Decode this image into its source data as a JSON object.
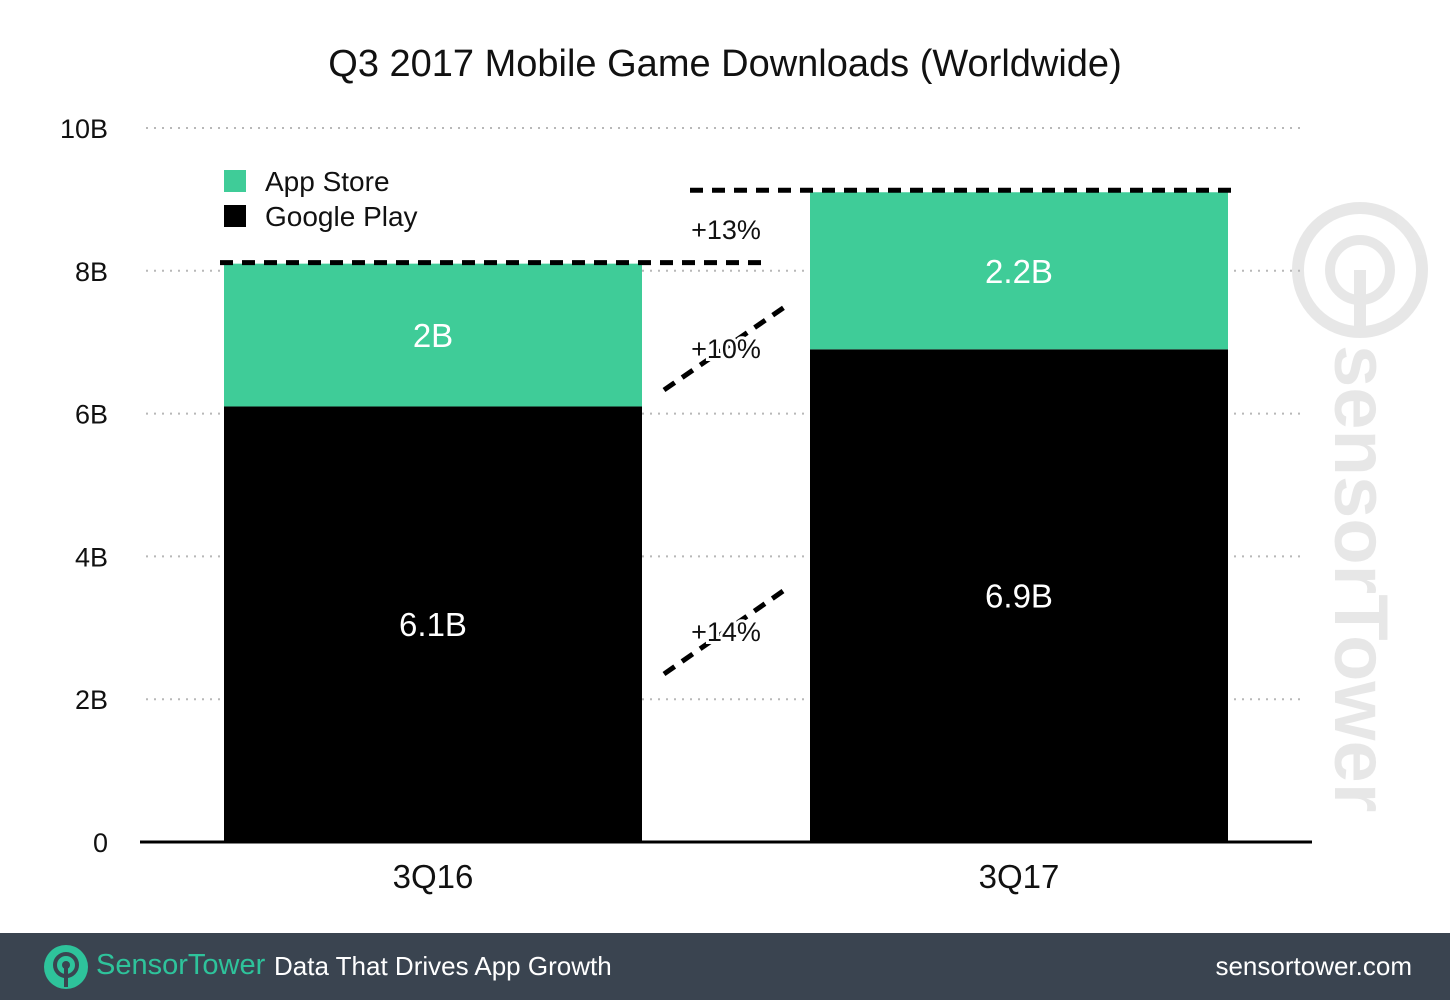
{
  "chart_data": {
    "type": "bar",
    "stacked": true,
    "title": "Q3 2017 Mobile Game Downloads (Worldwide)",
    "categories": [
      "3Q16",
      "3Q17"
    ],
    "series": [
      {
        "name": "Google Play",
        "values": [
          6.1,
          6.9
        ],
        "labels": [
          "6.1B",
          "6.9B"
        ],
        "color": "#000000"
      },
      {
        "name": "App Store",
        "values": [
          2.0,
          2.2
        ],
        "labels": [
          "2B",
          "2.2B"
        ],
        "color": "#3fcc98"
      }
    ],
    "ylim": [
      0,
      10
    ],
    "yticks": [
      {
        "value": 0,
        "label": "0"
      },
      {
        "value": 2,
        "label": "2B"
      },
      {
        "value": 4,
        "label": "4B"
      },
      {
        "value": 6,
        "label": "6B"
      },
      {
        "value": 8,
        "label": "8B"
      },
      {
        "value": 10,
        "label": "10B"
      }
    ],
    "grid": true,
    "legend_position": "top-left",
    "growth_annotations": [
      {
        "label": "+13%",
        "series": "total"
      },
      {
        "label": "+10%",
        "series": "App Store"
      },
      {
        "label": "+14%",
        "series": "Google Play"
      }
    ]
  },
  "watermark": {
    "text": "sensorTower"
  },
  "footer": {
    "brand_part1": "Sensor",
    "brand_part2": "Tower",
    "tagline": "Data That Drives App Growth",
    "url": "sensortower.com",
    "logo_icon": "sensortower-logo-icon",
    "background": "#3a4450",
    "accent": "#2ec39b"
  }
}
